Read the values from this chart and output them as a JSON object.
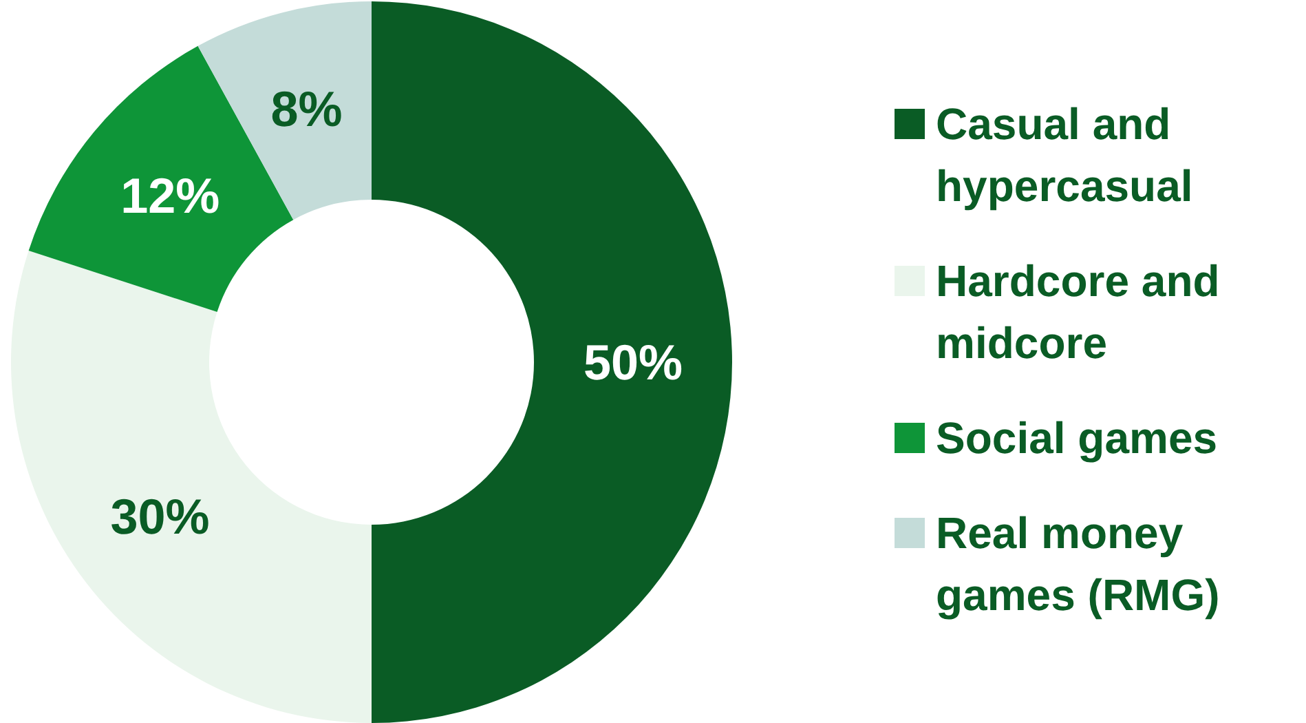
{
  "chart_data": {
    "type": "donut",
    "categories": [
      "Casual and hypercasual",
      "Hardcore and midcore",
      "Social games",
      "Real money games (RMG)"
    ],
    "values": [
      50,
      30,
      12,
      8
    ],
    "colors": [
      "#0a5c25",
      "#eaf5ec",
      "#0e9538",
      "#c4dcd9"
    ],
    "value_labels": [
      "50%",
      "30%",
      "12%",
      "8%"
    ],
    "legend": "right"
  }
}
